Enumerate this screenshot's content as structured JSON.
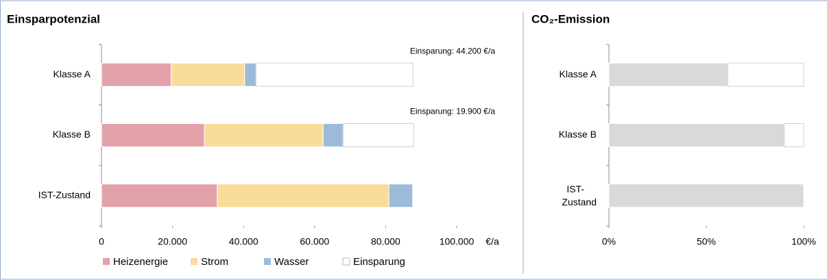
{
  "chart_data": [
    {
      "type": "stacked-bar-horizontal",
      "title": "Einsparpotenzial",
      "categories": [
        "Klasse A",
        "Klasse B",
        "IST-Zustand"
      ],
      "series": [
        {
          "name": "Heizenergie",
          "color": "#e3a1aa",
          "values": [
            19600,
            29000,
            32600
          ]
        },
        {
          "name": "Strom",
          "color": "#f9dc9a",
          "values": [
            20700,
            33400,
            48300
          ]
        },
        {
          "name": "Wasser",
          "color": "#9dbbd9",
          "values": [
            3200,
            5600,
            6700
          ]
        },
        {
          "name": "Einsparung",
          "color": "#ffffff",
          "values": [
            44200,
            19900,
            0
          ],
          "value_labels": [
            "Einsparung: 44.200 €/a",
            "Einsparung: 19.900 €/a",
            null
          ]
        }
      ],
      "xlabel": "€/a",
      "xlim": [
        0,
        100000
      ],
      "xticks": [
        0,
        {
          "value": 20000,
          "label": "20.000"
        },
        {
          "value": 40000,
          "label": "40.000"
        },
        {
          "value": 60000,
          "label": "60.000"
        },
        {
          "value": 80000,
          "label": "80.000"
        },
        {
          "value": 100000,
          "label": "100.000"
        }
      ],
      "legend": "bottom"
    },
    {
      "type": "stacked-bar-horizontal",
      "title": "CO₂-Emission",
      "categories": [
        "Klasse A",
        "Klasse B",
        "IST-Zustand"
      ],
      "series": [
        {
          "color": "#d9d9d9",
          "values": [
            61,
            90,
            100
          ]
        },
        {
          "color": "#ffffff",
          "values": [
            39,
            10,
            0
          ]
        }
      ],
      "xlim": [
        0,
        100
      ],
      "xticks": [
        {
          "value": 0,
          "label": "0%"
        },
        {
          "value": 50,
          "label": "50%"
        },
        {
          "value": 100,
          "label": "100%"
        }
      ]
    }
  ]
}
